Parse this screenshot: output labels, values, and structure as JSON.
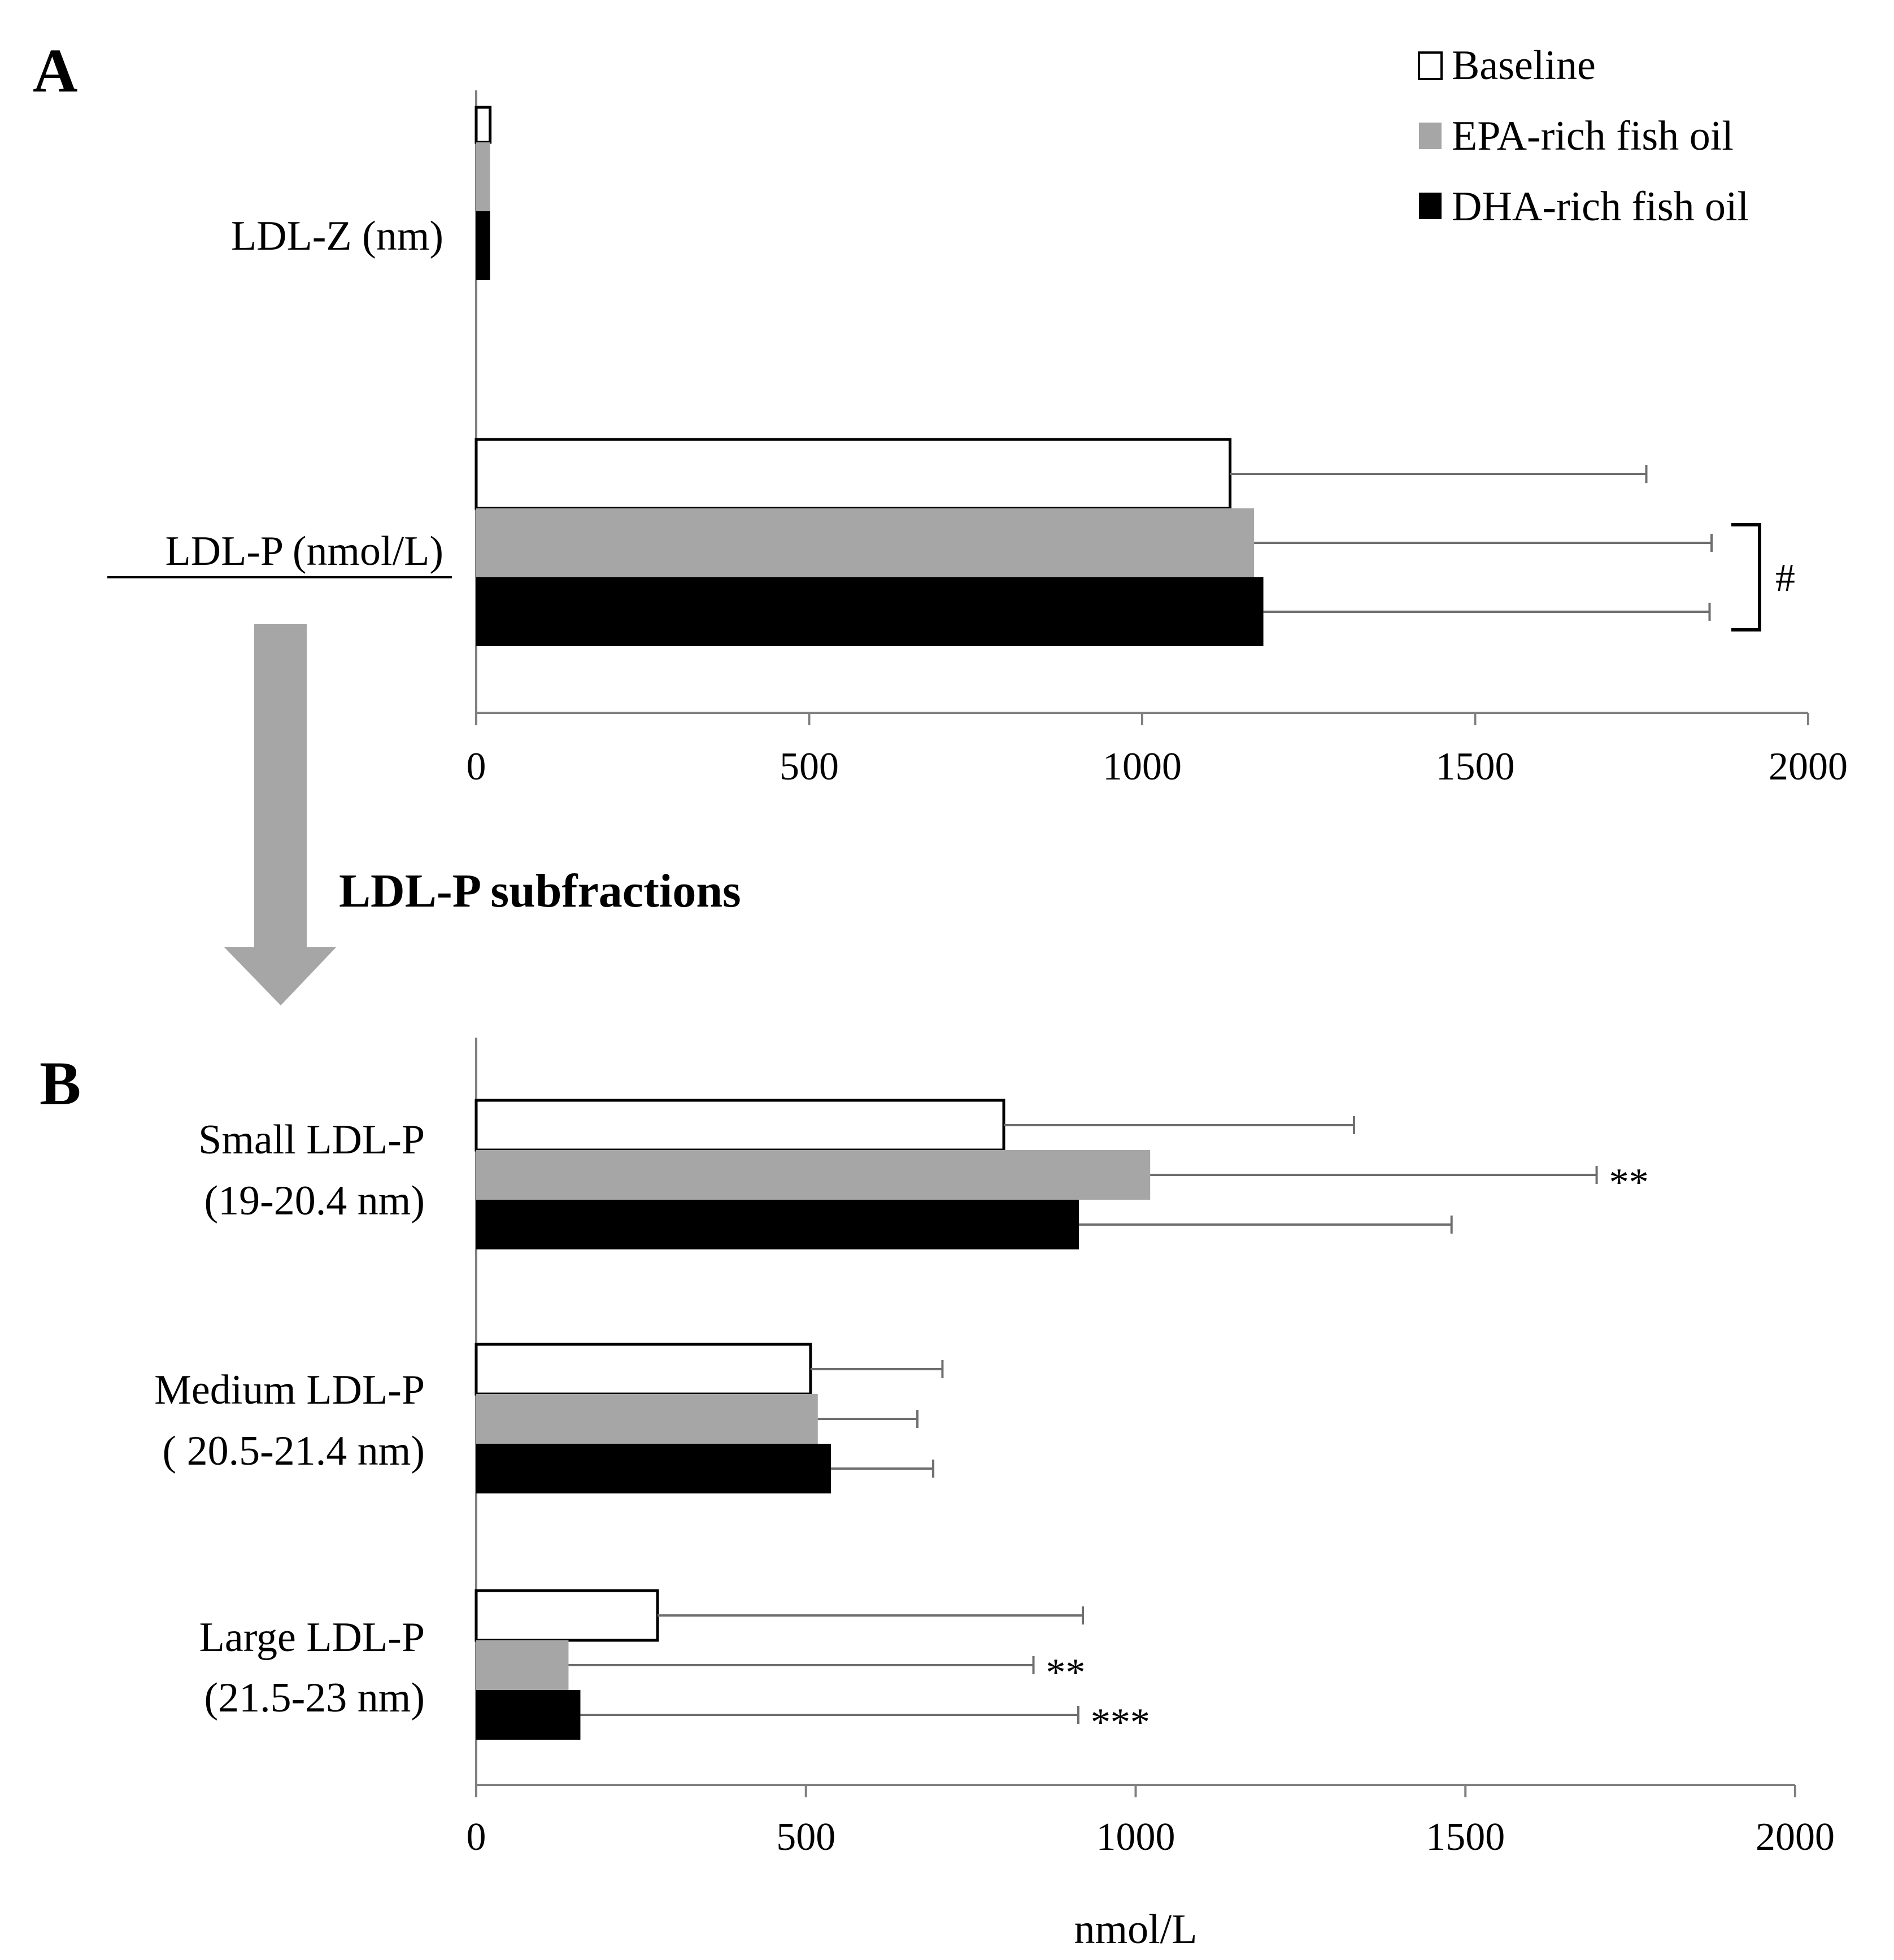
{
  "colors": {
    "baseline": "#ffffff",
    "epa": "#a6a6a6",
    "dha": "#000000",
    "axis": "#808080",
    "error": "#6e6e6e",
    "arrow": "#a6a6a6"
  },
  "legend": {
    "baseline": "Baseline",
    "epa": "EPA-rich fish oil",
    "dha": "DHA-rich fish oil"
  },
  "annotations": {
    "panel_a": "A",
    "panel_b": "B",
    "subfractions_title": "LDL-P subfractions",
    "bracket_mark": "#"
  },
  "chart_data": [
    {
      "type": "bar",
      "orientation": "horizontal",
      "panel": "A",
      "xlim": [
        0,
        2000
      ],
      "xticks": [
        "0",
        "500",
        "1000",
        "1500",
        "2000"
      ],
      "xlabel": "",
      "grid": false,
      "legend_position": "top-right",
      "categories": [
        {
          "label_lines": [
            "LDL-Z (nm)"
          ],
          "underline": false
        },
        {
          "label_lines": [
            "LDL-P (nmol/L)"
          ],
          "underline": true
        }
      ],
      "series": [
        {
          "name": "Baseline",
          "values": [
            20.9,
            1132
          ],
          "errors": [
            0,
            625
          ]
        },
        {
          "name": "EPA-rich fish oil",
          "values": [
            20.8,
            1168
          ],
          "errors": [
            0,
            687
          ]
        },
        {
          "name": "DHA-rich fish oil",
          "values": [
            20.8,
            1182
          ],
          "errors": [
            0,
            670
          ]
        }
      ],
      "significance": [
        {
          "category": 1,
          "series": [
            1,
            2
          ],
          "mark": "#",
          "bracket": true
        }
      ]
    },
    {
      "type": "bar",
      "orientation": "horizontal",
      "panel": "B",
      "xlim": [
        0,
        2000
      ],
      "xticks": [
        "0",
        "500",
        "1000",
        "1500",
        "2000"
      ],
      "xlabel": "nmol/L",
      "grid": false,
      "categories": [
        {
          "label_lines": [
            "Small LDL-P",
            "(19-20.4  nm)"
          ]
        },
        {
          "label_lines": [
            "Medium LDL-P",
            "( 20.5-21.4  nm)"
          ]
        },
        {
          "label_lines": [
            "Large LDL-P",
            "(21.5-23  nm)"
          ]
        }
      ],
      "series": [
        {
          "name": "Baseline",
          "values": [
            800,
            507,
            275
          ],
          "errors": [
            531,
            200,
            645
          ]
        },
        {
          "name": "EPA-rich fish oil",
          "values": [
            1022,
            518,
            140
          ],
          "errors": [
            677,
            151,
            705
          ]
        },
        {
          "name": "DHA-rich fish oil",
          "values": [
            914,
            538,
            158
          ],
          "errors": [
            565,
            155,
            755
          ]
        }
      ],
      "significance": [
        {
          "category": 0,
          "series": 1,
          "mark": "**"
        },
        {
          "category": 2,
          "series": 1,
          "mark": "**"
        },
        {
          "category": 2,
          "series": 2,
          "mark": "***"
        }
      ]
    }
  ]
}
